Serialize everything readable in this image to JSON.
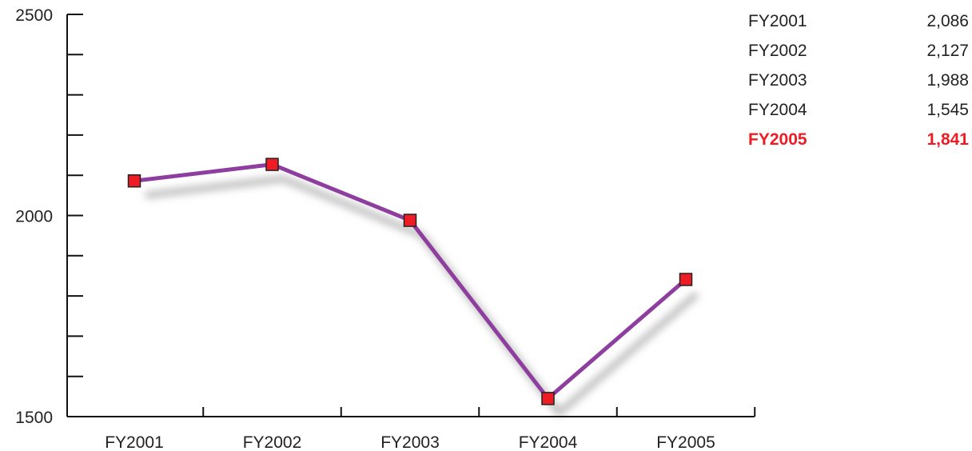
{
  "colors": {
    "line": "#8e3e9e",
    "marker": "#ee1c24",
    "highlight": "#ee1c24",
    "axis": "#111111",
    "text": "#222222"
  },
  "chart_data": {
    "type": "line",
    "categories": [
      "FY2001",
      "FY2002",
      "FY2003",
      "FY2004",
      "FY2005"
    ],
    "values": [
      2086,
      2127,
      1988,
      1545,
      1841
    ],
    "ylim": [
      1500,
      2500
    ],
    "y_tick_labels": [
      "2500",
      "2000",
      "1500"
    ],
    "y_tick_values": [
      2500,
      2000,
      1500
    ],
    "y_minor_step": 100,
    "title": "",
    "xlabel": "",
    "ylabel": "",
    "grid": false,
    "legend_placement": "top-right",
    "legend": [
      {
        "label": "FY2001",
        "value": "2,086"
      },
      {
        "label": "FY2002",
        "value": "2,127"
      },
      {
        "label": "FY2003",
        "value": "1,988"
      },
      {
        "label": "FY2004",
        "value": "1,545"
      },
      {
        "label": "FY2005",
        "value": "1,841",
        "highlight": true
      }
    ]
  }
}
